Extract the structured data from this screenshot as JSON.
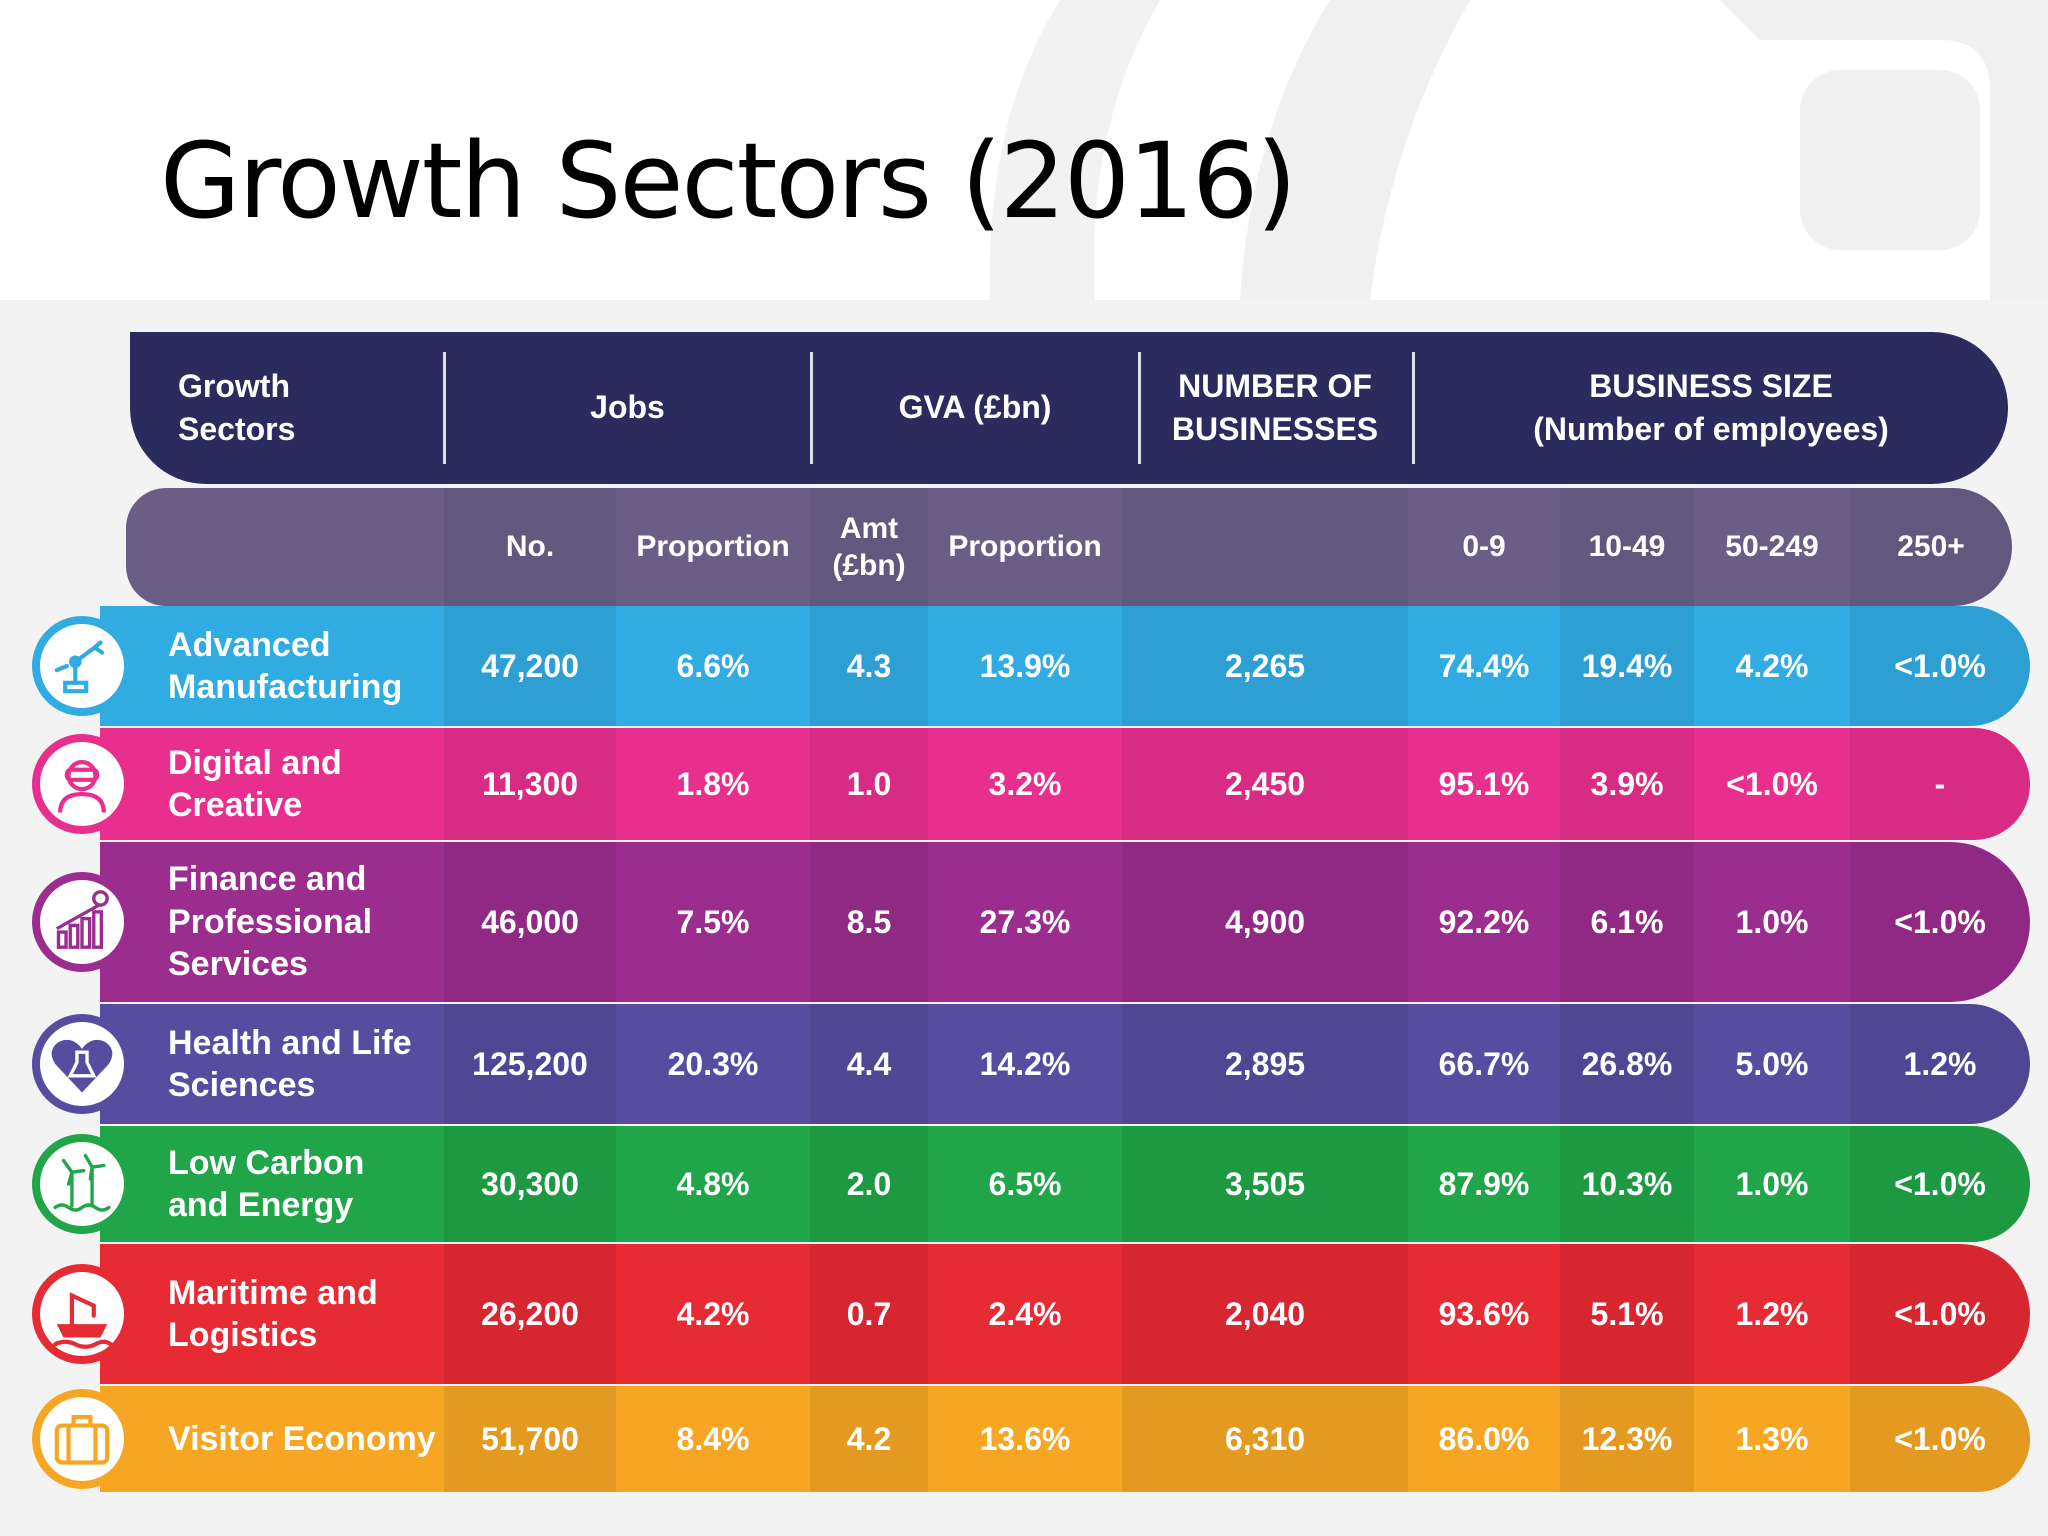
{
  "title": "Growth Sectors (2016)",
  "colors": {
    "header_top": "#2b2b5e",
    "header_sub": "#6a5e86",
    "advanced_manufacturing": "#31ace3",
    "digital_and_creative": "#e92f8e",
    "finance_and_professional": "#9b2d8f",
    "health_and_life": "#574da0",
    "low_carbon": "#20a548",
    "maritime": "#e72b35",
    "visitor_economy": "#f6a623"
  },
  "header": {
    "growth_sectors": "Growth\nSectors",
    "jobs": "Jobs",
    "gva": "GVA (£bn)",
    "num_businesses": "NUMBER OF\nBUSINESSES",
    "business_size": "BUSINESS SIZE\n(Number of employees)"
  },
  "subheader": {
    "no": "No.",
    "jobs_proportion": "Proportion",
    "amt": "Amt\n(£bn)",
    "gva_proportion": "Proportion",
    "size_0_9": "0-9",
    "size_10_49": "10-49",
    "size_50_249": "50-249",
    "size_250_plus": "250+"
  },
  "chart_data": {
    "type": "table",
    "title": "Growth Sectors (2016)",
    "columns": [
      "Growth Sectors",
      "Jobs No.",
      "Jobs Proportion",
      "GVA Amt (£bn)",
      "GVA Proportion",
      "NUMBER OF BUSINESSES",
      "0-9",
      "10-49",
      "50-249",
      "250+"
    ],
    "rows": [
      {
        "sector": "Advanced\nManufacturing",
        "icon": "robot-arm-icon",
        "jobs_no": "47,200",
        "jobs_prop": "6.6%",
        "gva_amt": "4.3",
        "gva_prop": "13.9%",
        "businesses": "2,265",
        "s0_9": "74.4%",
        "s10_49": "19.4%",
        "s50_249": "4.2%",
        "s250": "<1.0%"
      },
      {
        "sector": "Digital and\nCreative",
        "icon": "vr-headset-person-icon",
        "jobs_no": "11,300",
        "jobs_prop": "1.8%",
        "gva_amt": "1.0",
        "gva_prop": "3.2%",
        "businesses": "2,450",
        "s0_9": "95.1%",
        "s10_49": "3.9%",
        "s50_249": "<1.0%",
        "s250": "-"
      },
      {
        "sector": "Finance and\nProfessional\nServices",
        "icon": "bar-graph-coin-icon",
        "jobs_no": "46,000",
        "jobs_prop": "7.5%",
        "gva_amt": "8.5",
        "gva_prop": "27.3%",
        "businesses": "4,900",
        "s0_9": "92.2%",
        "s10_49": "6.1%",
        "s50_249": "1.0%",
        "s250": "<1.0%"
      },
      {
        "sector": "Health and Life\nSciences",
        "icon": "heart-flask-icon",
        "jobs_no": "125,200",
        "jobs_prop": "20.3%",
        "gva_amt": "4.4",
        "gva_prop": "14.2%",
        "businesses": "2,895",
        "s0_9": "66.7%",
        "s10_49": "26.8%",
        "s50_249": "5.0%",
        "s250": "1.2%"
      },
      {
        "sector": "Low Carbon\nand Energy",
        "icon": "wind-turbine-icon",
        "jobs_no": "30,300",
        "jobs_prop": "4.8%",
        "gva_amt": "2.0",
        "gva_prop": "6.5%",
        "businesses": "3,505",
        "s0_9": "87.9%",
        "s10_49": "10.3%",
        "s50_249": "1.0%",
        "s250": "<1.0%"
      },
      {
        "sector": "Maritime and\nLogistics",
        "icon": "ship-crane-icon",
        "jobs_no": "26,200",
        "jobs_prop": "4.2%",
        "gva_amt": "0.7",
        "gva_prop": "2.4%",
        "businesses": "2,040",
        "s0_9": "93.6%",
        "s10_49": "5.1%",
        "s50_249": "1.2%",
        "s250": "<1.0%"
      },
      {
        "sector": "Visitor Economy",
        "icon": "suitcase-icon",
        "jobs_no": "51,700",
        "jobs_prop": "8.4%",
        "gva_amt": "4.2",
        "gva_prop": "13.6%",
        "businesses": "6,310",
        "s0_9": "86.0%",
        "s10_49": "12.3%",
        "s50_249": "1.3%",
        "s250": "<1.0%"
      }
    ]
  }
}
